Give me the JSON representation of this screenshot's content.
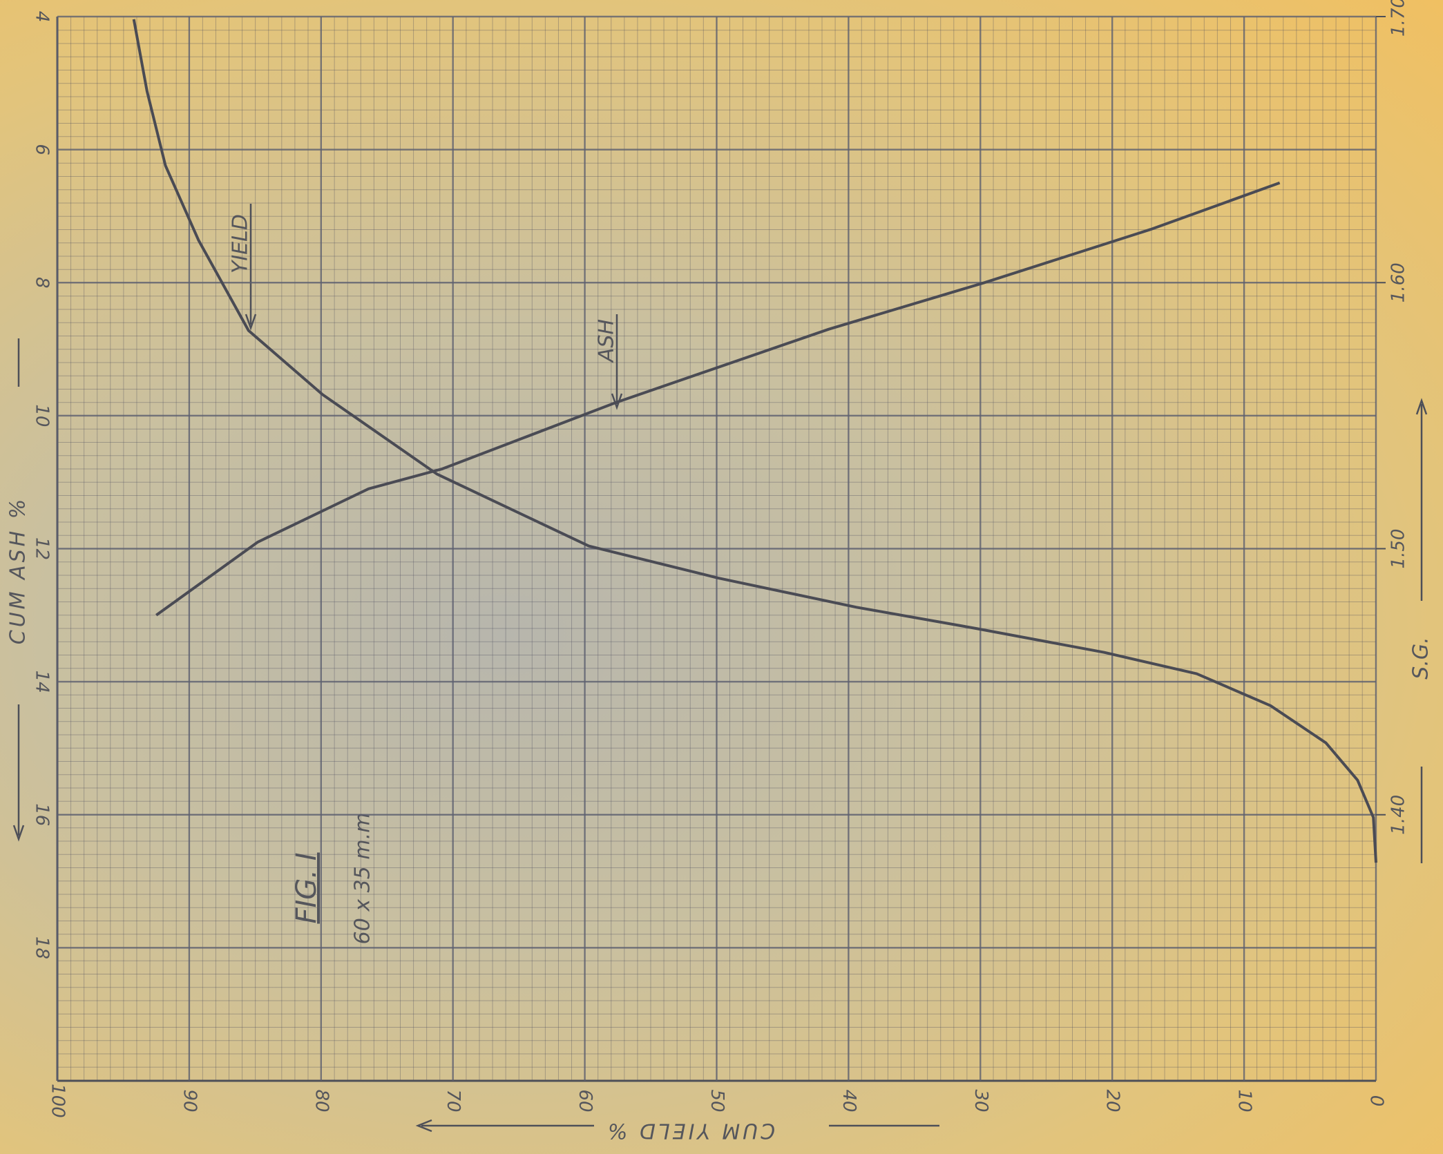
{
  "chart_data": {
    "type": "line",
    "xlabel": "CUM YIELD %",
    "ylabel": "CUM ASH %",
    "y2label": "S.G.",
    "xlim": [
      100,
      0
    ],
    "xticks": [
      100,
      90,
      80,
      70,
      60,
      50,
      40,
      30,
      20,
      10,
      0
    ],
    "ylim": [
      20,
      4
    ],
    "yticks": [
      4,
      6,
      8,
      10,
      12,
      14,
      16,
      18
    ],
    "y2lim": [
      1.3,
      1.7
    ],
    "y2ticks": [
      {
        "value": 1.4,
        "label": "1.40"
      },
      {
        "value": 1.5,
        "label": "1.50"
      },
      {
        "value": 1.6,
        "label": "1.60"
      },
      {
        "value": 1.7,
        "label": "1.70"
      }
    ],
    "grid": true,
    "annotations": [
      "FIG. I",
      "60 x 35 m.m"
    ],
    "series": [
      {
        "name": "YIELD",
        "color": "#4a4b54",
        "axis": "y2",
        "x": [
          94.2,
          93.2,
          91.8,
          89.3,
          85.5,
          79.9,
          71.2,
          59.7,
          49.9,
          39.4,
          30.3,
          20.6,
          13.6,
          8.0,
          3.8,
          1.4,
          0.2,
          0
        ],
        "values": [
          1.699,
          1.672,
          1.644,
          1.616,
          1.582,
          1.558,
          1.528,
          1.501,
          1.489,
          1.478,
          1.47,
          1.461,
          1.453,
          1.441,
          1.427,
          1.413,
          1.399,
          1.382
        ]
      },
      {
        "name": "ASH",
        "color": "#4a4b54",
        "x": [
          92.5,
          84.8,
          76.4,
          70.8,
          57.6,
          41.5,
          29.7,
          17.1,
          7.3
        ],
        "values": [
          13.0,
          11.9,
          11.1,
          10.8,
          9.8,
          8.7,
          8.0,
          7.2,
          6.5
        ]
      }
    ]
  }
}
